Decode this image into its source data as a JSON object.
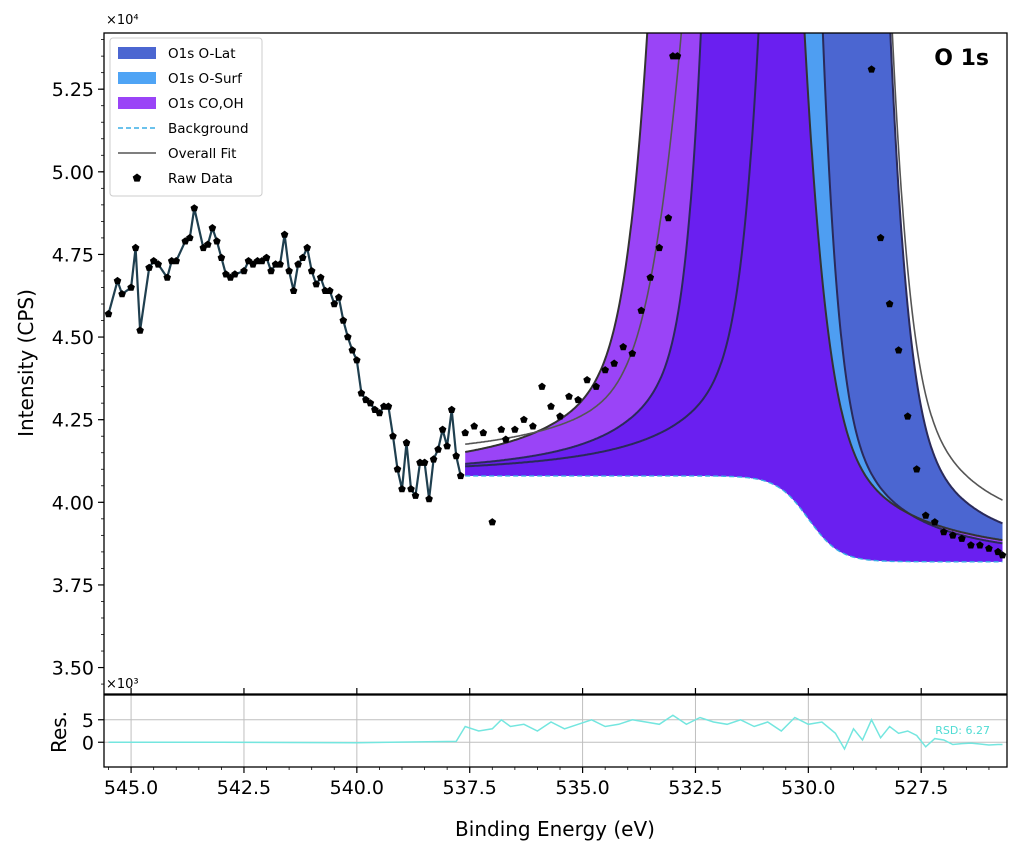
{
  "chart_data": {
    "type": "line",
    "title": "O 1s",
    "xlabel": "Binding Energy (eV)",
    "ylabel": "Intensity (CPS)",
    "residual_ylabel": "Res.",
    "main_multiplier": "×10⁴",
    "residual_multiplier": "×10³",
    "rsd_label": "RSD: 6.27",
    "x_reversed": true,
    "xlim": [
      545.6,
      525.6
    ],
    "ylim": [
      34200,
      54200
    ],
    "residual_ylim": [
      -5500,
      10500
    ],
    "x_ticks": [
      545.0,
      542.5,
      540.0,
      537.5,
      535.0,
      532.5,
      530.0,
      527.5
    ],
    "x_tick_labels": [
      "545.0",
      "542.5",
      "540.0",
      "537.5",
      "535.0",
      "532.5",
      "530.0",
      "527.5"
    ],
    "y_ticks": [
      35000,
      37500,
      40000,
      42500,
      45000,
      47500,
      50000,
      52500
    ],
    "y_tick_labels": [
      "3.50",
      "3.75",
      "4.00",
      "4.25",
      "4.50",
      "4.75",
      "5.00",
      "5.25"
    ],
    "residual_ticks": [
      0,
      5000
    ],
    "residual_tick_labels": [
      "0",
      "5"
    ],
    "grid": "residual panel only",
    "legend_position": "top-left",
    "legend": [
      {
        "label": "O1s O-Lat",
        "kind": "patch",
        "color": "#4b66d1"
      },
      {
        "label": "O1s O-Surf",
        "kind": "patch",
        "color": "#4fa4f5"
      },
      {
        "label": "O1s CO,OH",
        "kind": "patch",
        "color": "#9a44f7"
      },
      {
        "label": "Background",
        "kind": "dashed",
        "color": "#3aaee5"
      },
      {
        "label": "Overall Fit",
        "kind": "line",
        "color": "#555555"
      },
      {
        "label": "Raw Data",
        "kind": "marker",
        "color": "#000000"
      }
    ],
    "colors": {
      "o_lat": "#4b66d1",
      "o_surf": "#4fa4f5",
      "co_oh": "#9a44f7",
      "co_oh_dark": "#6a1ff0",
      "background": "#3aaee5",
      "fit": "#555555",
      "raw": "#000000",
      "residual": "#74e6df"
    },
    "raw_data": {
      "x": [
        545.5,
        545.3,
        545.2,
        545.0,
        544.9,
        544.8,
        544.6,
        544.5,
        544.4,
        544.2,
        544.1,
        544.0,
        543.8,
        543.7,
        543.6,
        543.4,
        543.3,
        543.2,
        543.1,
        543.0,
        542.9,
        542.8,
        542.7,
        542.5,
        542.4,
        542.3,
        542.2,
        542.1,
        542.0,
        541.9,
        541.8,
        541.7,
        541.6,
        541.5,
        541.4,
        541.3,
        541.2,
        541.1,
        541.0,
        540.9,
        540.8,
        540.7,
        540.6,
        540.5,
        540.4,
        540.3,
        540.2,
        540.1,
        540.0,
        539.9,
        539.8,
        539.7,
        539.6,
        539.5,
        539.4,
        539.3,
        539.2,
        539.1,
        539.0,
        538.9,
        538.8,
        538.7,
        538.6,
        538.5,
        538.4,
        538.3,
        538.2,
        538.1,
        538.0,
        537.9,
        537.8,
        537.7,
        537.6,
        537.4,
        537.2,
        537.0,
        536.8,
        536.7,
        536.5,
        536.3,
        536.1,
        535.9,
        535.7,
        535.5,
        535.3,
        535.1,
        534.9,
        534.7,
        534.5,
        534.3,
        534.1,
        533.9,
        533.7,
        533.5,
        533.3,
        533.1,
        533.0,
        532.9,
        528.6,
        528.4,
        528.2,
        528.0,
        527.8,
        527.6,
        527.4,
        527.2,
        527.0,
        526.8,
        526.6,
        526.4,
        526.2,
        526.0,
        525.8,
        525.7
      ],
      "y": [
        45700,
        46700,
        46300,
        46500,
        47700,
        45200,
        47100,
        47300,
        47200,
        46800,
        47300,
        47300,
        47900,
        48000,
        48900,
        47700,
        47800,
        48300,
        47900,
        47400,
        46900,
        46800,
        46900,
        47000,
        47300,
        47200,
        47300,
        47300,
        47400,
        47000,
        47200,
        47200,
        48100,
        47000,
        46400,
        47200,
        47400,
        47700,
        47000,
        46600,
        46800,
        46400,
        46400,
        46000,
        46200,
        45500,
        45000,
        44600,
        44300,
        43300,
        43100,
        43000,
        42800,
        42700,
        42900,
        42900,
        42000,
        41000,
        40400,
        41800,
        40400,
        40200,
        41200,
        41200,
        40100,
        41300,
        41600,
        42200,
        41700,
        42800,
        41400,
        40800,
        42100,
        42300,
        42100,
        39400,
        42200,
        41900,
        42200,
        42500,
        42300,
        43500,
        42900,
        42600,
        43200,
        43100,
        43700,
        43500,
        44000,
        44200,
        44700,
        44500,
        45800,
        46800,
        47700,
        48600,
        53500,
        53500,
        53100,
        48000,
        46000,
        44600,
        42600,
        41000,
        39600,
        39400,
        39100,
        39000,
        38900,
        38700,
        38700,
        38600,
        38500,
        38400
      ]
    },
    "residuals": {
      "x": [
        545.5,
        543.0,
        540.0,
        537.8,
        537.6,
        537.3,
        537.0,
        536.8,
        536.6,
        536.3,
        536.0,
        535.7,
        535.4,
        535.1,
        534.8,
        534.5,
        534.2,
        533.9,
        533.6,
        533.3,
        533.0,
        532.7,
        532.4,
        532.1,
        531.8,
        531.5,
        531.2,
        530.9,
        530.6,
        530.3,
        530.0,
        529.7,
        529.4,
        529.2,
        529.0,
        528.8,
        528.6,
        528.4,
        528.2,
        528.0,
        527.8,
        527.6,
        527.4,
        527.2,
        527.0,
        526.8,
        526.6,
        526.4,
        526.2,
        526.0,
        525.8,
        525.7
      ],
      "y": [
        0,
        0,
        -100,
        200,
        3500,
        2500,
        3000,
        5000,
        3500,
        4000,
        2500,
        4500,
        3000,
        4000,
        5000,
        3500,
        4000,
        5000,
        4500,
        4000,
        6000,
        4000,
        5500,
        4500,
        4000,
        5000,
        3500,
        4500,
        2500,
        5500,
        4000,
        4500,
        2000,
        -1500,
        3000,
        500,
        5000,
        1000,
        3500,
        2000,
        2500,
        1500,
        -1000,
        800,
        500,
        -500,
        -300,
        -200,
        -400,
        -600,
        -500,
        -500
      ]
    },
    "components": [
      {
        "name": "O1s O-Lat",
        "center_eV": 529.6,
        "fwhm_eV": 1.1
      },
      {
        "name": "O1s O-Surf",
        "center_eV": 531.0,
        "fwhm_eV": 1.3
      },
      {
        "name": "O1s CO,OH",
        "center_eV": 531.8,
        "fwhm_eV": 1.5
      }
    ],
    "background_levels": {
      "high_be": 40800,
      "low_be": 38200
    }
  }
}
